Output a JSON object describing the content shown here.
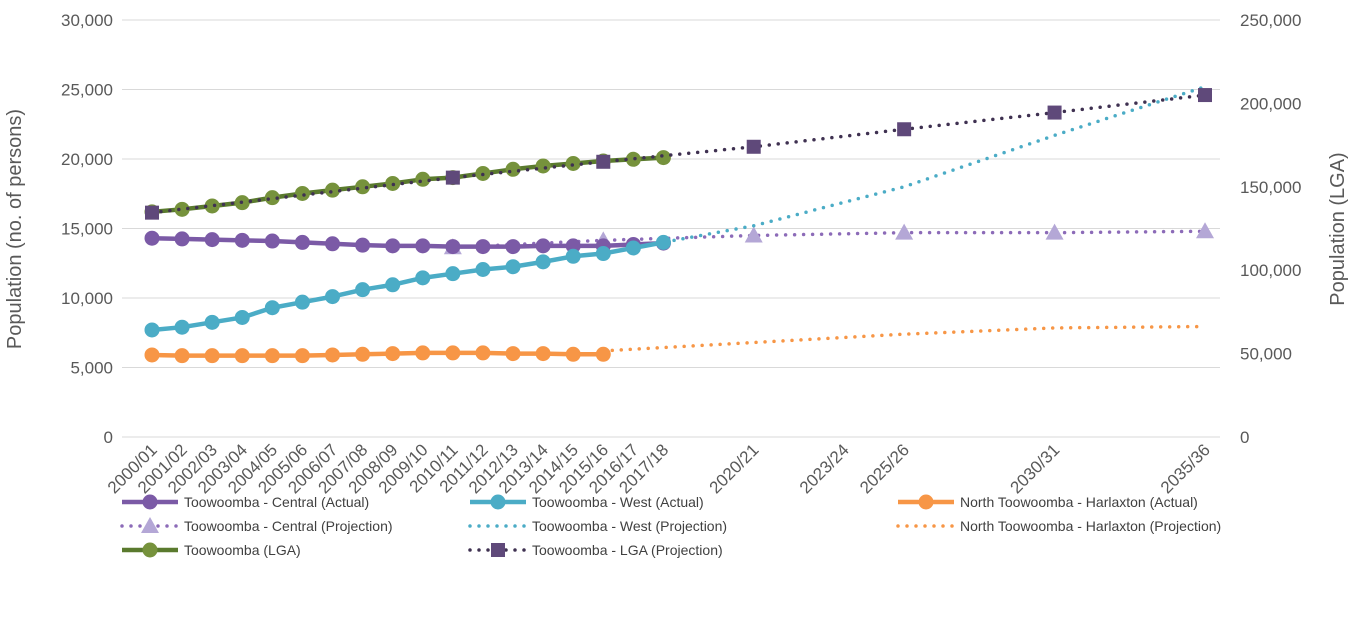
{
  "chart_data": {
    "type": "line",
    "title": "",
    "categories": [
      "2000/01",
      "2001/02",
      "2002/03",
      "2003/04",
      "2004/05",
      "2005/06",
      "2006/07",
      "2007/08",
      "2008/09",
      "2009/10",
      "2010/11",
      "2011/12",
      "2012/13",
      "2013/14",
      "2014/15",
      "2015/16",
      "2016/17",
      "2017/18",
      "2020/21",
      "2023/24",
      "2025/26",
      "2030/31",
      "2035/36"
    ],
    "x_years": [
      2000,
      2001,
      2002,
      2003,
      2004,
      2005,
      2006,
      2007,
      2008,
      2009,
      2010,
      2011,
      2012,
      2013,
      2014,
      2015,
      2016,
      2017,
      2020,
      2023,
      2025,
      2030,
      2035
    ],
    "y_left": {
      "label": "Population (no. of persons)",
      "range": [
        0,
        30000
      ],
      "ticks": [
        0,
        5000,
        10000,
        15000,
        20000,
        25000,
        30000
      ],
      "tick_labels": [
        "0",
        "5,000",
        "10,000",
        "15,000",
        "20,000",
        "25,000",
        "30,000"
      ]
    },
    "y_right": {
      "label": "Population (LGA)",
      "range": [
        0,
        250000
      ],
      "ticks": [
        0,
        50000,
        100000,
        150000,
        200000,
        250000
      ],
      "tick_labels": [
        "0",
        "50,000",
        "100,000",
        "150,000",
        "200,000",
        "250,000"
      ]
    },
    "grid": true,
    "legend_position": "bottom",
    "series": [
      {
        "name": "Toowoomba - Central (Actual)",
        "axis": "left",
        "style": "solid",
        "marker": "circle",
        "color": "#7b5aa6",
        "x": [
          2000,
          2001,
          2002,
          2003,
          2004,
          2005,
          2006,
          2007,
          2008,
          2009,
          2010,
          2011,
          2012,
          2013,
          2014,
          2015,
          2016,
          2017
        ],
        "values": [
          14300,
          14250,
          14200,
          14150,
          14100,
          14000,
          13900,
          13800,
          13750,
          13750,
          13700,
          13700,
          13700,
          13750,
          13750,
          13750,
          13850,
          13950
        ]
      },
      {
        "name": "Toowoomba - West (Actual)",
        "axis": "left",
        "style": "solid",
        "marker": "circle",
        "color": "#4bacc6",
        "x": [
          2000,
          2001,
          2002,
          2003,
          2004,
          2005,
          2006,
          2007,
          2008,
          2009,
          2010,
          2011,
          2012,
          2013,
          2014,
          2015,
          2016,
          2017
        ],
        "values": [
          7700,
          7900,
          8250,
          8600,
          9300,
          9700,
          10100,
          10600,
          10950,
          11450,
          11750,
          12050,
          12250,
          12600,
          13000,
          13200,
          13600,
          14000
        ]
      },
      {
        "name": "North Toowoomba - Harlaxton (Actual)",
        "axis": "left",
        "style": "solid",
        "marker": "circle",
        "color": "#f79646",
        "x": [
          2000,
          2001,
          2002,
          2003,
          2004,
          2005,
          2006,
          2007,
          2008,
          2009,
          2010,
          2011,
          2012,
          2013,
          2014,
          2015
        ],
        "values": [
          5900,
          5850,
          5850,
          5850,
          5850,
          5850,
          5900,
          5950,
          6000,
          6050,
          6050,
          6050,
          6000,
          6000,
          5950,
          5950
        ]
      },
      {
        "name": "Toowoomba - Central (Projection)",
        "axis": "left",
        "style": "dotted",
        "marker": "triangle",
        "color": "#8c6bb8",
        "marker_color": "#b4a7d6",
        "x": [
          2010,
          2015,
          2020,
          2025,
          2030,
          2035
        ],
        "values": [
          13650,
          14150,
          14500,
          14700,
          14700,
          14800
        ]
      },
      {
        "name": "Toowoomba - West (Projection)",
        "axis": "left",
        "style": "dotted",
        "marker": "none",
        "color": "#4bacc6",
        "x": [
          2015,
          2020,
          2025,
          2030,
          2035
        ],
        "values": [
          13200,
          15200,
          18000,
          21700,
          25200
        ]
      },
      {
        "name": "North Toowoomba - Harlaxton (Projection)",
        "axis": "left",
        "style": "dotted",
        "marker": "none",
        "color": "#f79646",
        "x": [
          2015,
          2020,
          2025,
          2030,
          2035
        ],
        "values": [
          6200,
          6800,
          7400,
          7850,
          7950
        ]
      },
      {
        "name": "Toowoomba (LGA)",
        "axis": "right",
        "style": "solid",
        "marker": "circle",
        "color": "#5a7a2e",
        "marker_color": "#76923c",
        "x": [
          2000,
          2001,
          2002,
          2003,
          2004,
          2005,
          2006,
          2007,
          2008,
          2009,
          2010,
          2011,
          2012,
          2013,
          2014,
          2015,
          2016,
          2017
        ],
        "values": [
          135000,
          136500,
          138500,
          140500,
          143500,
          146000,
          148000,
          150000,
          152000,
          154500,
          155500,
          158000,
          160500,
          162500,
          164000,
          165500,
          166500,
          167500
        ]
      },
      {
        "name": "Toowoomba - LGA (Projection)",
        "axis": "right",
        "style": "dotted",
        "marker": "square",
        "color": "#3f3151",
        "marker_color": "#5f497a",
        "x": [
          2000,
          2010,
          2015,
          2020,
          2025,
          2030,
          2035
        ],
        "values": [
          134500,
          155500,
          165000,
          174000,
          184500,
          194500,
          205000
        ]
      }
    ]
  }
}
